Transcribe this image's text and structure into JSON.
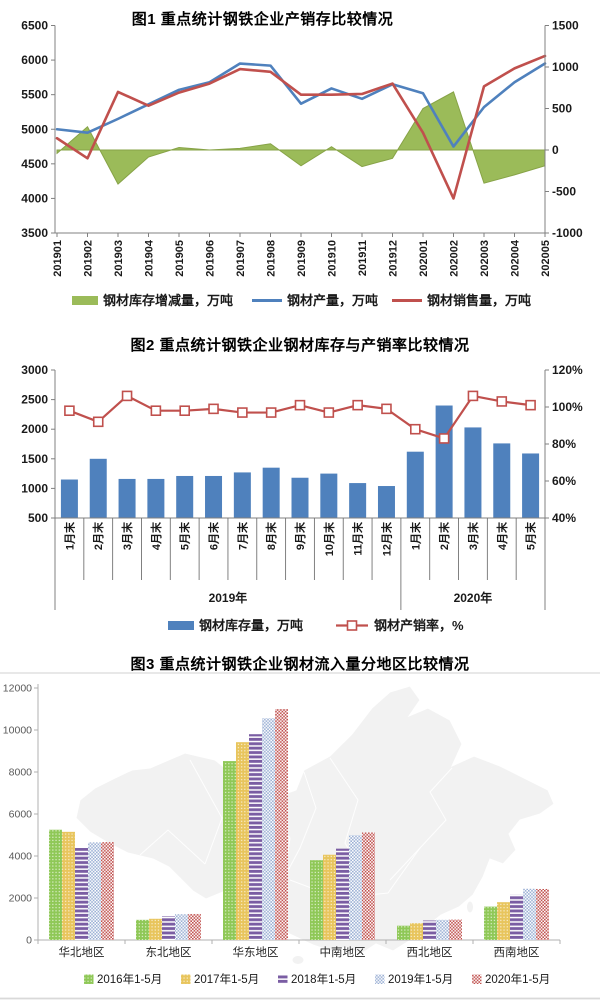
{
  "chart_data": [
    {
      "id": "figure1",
      "type": "combo-area-line",
      "title": "图1 重点统计钢铁企业产销存比较情况",
      "categories": [
        "201901",
        "201902",
        "201903",
        "201904",
        "201905",
        "201906",
        "201907",
        "201908",
        "201909",
        "201910",
        "201911",
        "201912",
        "202001",
        "202002",
        "202003",
        "202004",
        "202005"
      ],
      "left_axis": {
        "min": 3500,
        "max": 6500,
        "step": 500
      },
      "right_axis": {
        "min": -1000,
        "max": 1500,
        "step": 500
      },
      "legend_position": "bottom",
      "grid": false,
      "series": [
        {
          "name": "钢材库存增减量，万吨",
          "type": "area",
          "axis": "right",
          "color": "#9BBB59",
          "values": [
            -40,
            280,
            -410,
            -85,
            30,
            0,
            20,
            75,
            -190,
            40,
            -200,
            -100,
            500,
            700,
            -400,
            -300,
            -190
          ]
        },
        {
          "name": "钢材产量，万吨",
          "type": "line",
          "axis": "left",
          "color": "#4F81BD",
          "values": [
            5000,
            4950,
            5150,
            5360,
            5570,
            5680,
            5950,
            5920,
            5370,
            5590,
            5440,
            5650,
            5520,
            4750,
            5320,
            5680,
            5950
          ]
        },
        {
          "name": "钢材销售量，万吨",
          "type": "line",
          "axis": "left",
          "color": "#C0504D",
          "values": [
            4870,
            4580,
            5540,
            5340,
            5530,
            5660,
            5870,
            5830,
            5500,
            5500,
            5510,
            5660,
            4950,
            4000,
            5620,
            5880,
            6060
          ]
        }
      ]
    },
    {
      "id": "figure2",
      "type": "bar-line",
      "title": "图2 重点统计钢铁企业钢材库存与产销率比较情况",
      "categories": [
        "1月末",
        "2月末",
        "3月末",
        "4月末",
        "5月末",
        "6月末",
        "7月末",
        "8月末",
        "9月末",
        "10月末",
        "11月末",
        "12月末",
        "1月末",
        "2月末",
        "3月末",
        "4月末",
        "5月末"
      ],
      "groups": [
        {
          "label": "2019年",
          "span": 12
        },
        {
          "label": "2020年",
          "span": 5
        }
      ],
      "left_axis": {
        "min": 500,
        "max": 3000,
        "step": 500
      },
      "right_axis": {
        "min": 40,
        "max": 120,
        "step": 20,
        "suffix": "%"
      },
      "legend_position": "bottom",
      "grid": false,
      "series": [
        {
          "name": "钢材库存量，万吨",
          "type": "bar",
          "axis": "left",
          "color": "#4F81BD",
          "values": [
            1150,
            1500,
            1160,
            1160,
            1210,
            1210,
            1270,
            1350,
            1180,
            1250,
            1090,
            1040,
            1620,
            2400,
            2030,
            1760,
            1590
          ]
        },
        {
          "name": "钢材产销率，%",
          "type": "line-marker",
          "axis": "right",
          "color": "#C0504D",
          "marker": "open-square",
          "values": [
            98,
            92,
            106,
            98,
            98,
            99,
            97,
            97,
            101,
            97,
            101,
            99,
            88,
            83,
            106,
            103,
            101
          ]
        }
      ]
    },
    {
      "id": "figure3",
      "type": "grouped-bar",
      "title": "图3 重点统计钢铁企业钢材流入量分地区比较情况",
      "categories": [
        "华北地区",
        "东北地区",
        "华东地区",
        "中南地区",
        "西北地区",
        "西南地区"
      ],
      "y_axis": {
        "min": 0,
        "max": 12000,
        "step": 2000
      },
      "background": "china-map-silhouette",
      "legend_position": "bottom",
      "grid": false,
      "series": [
        {
          "name": "2016年1-5月",
          "color": "#8FC857",
          "pattern": "dots",
          "values": [
            5250,
            960,
            8520,
            3800,
            680,
            1590
          ]
        },
        {
          "name": "2017年1-5月",
          "color": "#E8C55D",
          "pattern": "dots",
          "values": [
            5150,
            1010,
            9420,
            4060,
            800,
            1800
          ]
        },
        {
          "name": "2018年1-5月",
          "color": "#7A5DA3",
          "pattern": "hstripes",
          "values": [
            4380,
            1130,
            9800,
            4350,
            930,
            2150
          ]
        },
        {
          "name": "2019年1-5月",
          "color": "#9AAFD4",
          "pattern": "checker",
          "values": [
            4650,
            1230,
            10560,
            4990,
            960,
            2440
          ]
        },
        {
          "name": "2020年1-5月",
          "color": "#C0504D",
          "pattern": "checker",
          "values": [
            4660,
            1240,
            11000,
            5120,
            970,
            2430
          ]
        }
      ]
    }
  ],
  "styles": {
    "axis_line_color": "#808080",
    "axis3_line_color": "#b0b0b0",
    "tick_label_color": "#1a1a1a",
    "tick3_label_color": "#595959",
    "separator_color": "#737373",
    "rule_color": "#d9d9d9",
    "map_fill": "#f2f2f2",
    "map_border": "#ffffff"
  }
}
